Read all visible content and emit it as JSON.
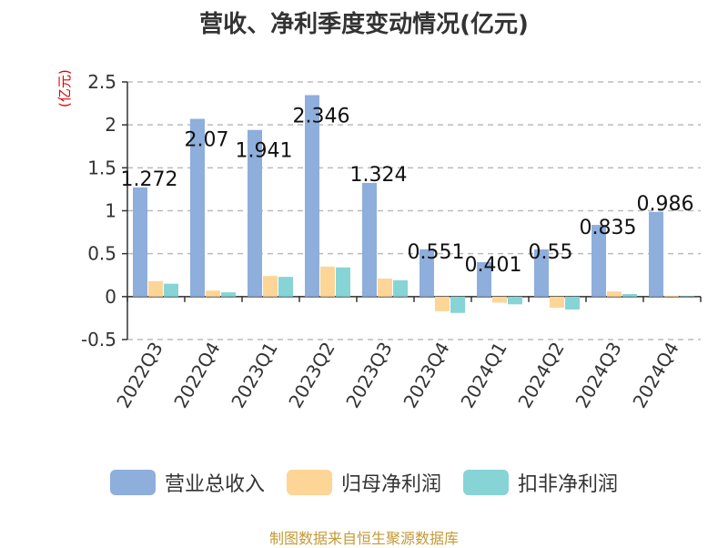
{
  "title": "营收、净利季度变动情况(亿元)",
  "unit_label": "(亿元)",
  "source": "制图数据来自恒生聚源数据库",
  "chart_data": {
    "type": "bar",
    "categories": [
      "2022Q3",
      "2022Q4",
      "2023Q1",
      "2023Q2",
      "2023Q3",
      "2023Q4",
      "2024Q1",
      "2024Q2",
      "2024Q3",
      "2024Q4"
    ],
    "series": [
      {
        "name": "营业总收入",
        "color": "#8eaedc",
        "values": [
          1.272,
          2.07,
          1.941,
          2.346,
          1.324,
          0.551,
          0.401,
          0.55,
          0.835,
          0.986
        ]
      },
      {
        "name": "归母净利润",
        "color": "#fdd596",
        "values": [
          0.18,
          0.07,
          0.24,
          0.35,
          0.21,
          -0.17,
          -0.07,
          -0.13,
          0.06,
          0.01
        ]
      },
      {
        "name": "扣非净利润",
        "color": "#86d4d6",
        "values": [
          0.15,
          0.05,
          0.23,
          0.34,
          0.19,
          -0.19,
          -0.09,
          -0.15,
          0.03,
          0.005
        ]
      }
    ],
    "data_labels": [
      "1.272",
      "2.07",
      "1.941",
      "2.346",
      "1.324",
      "0.551",
      "0.401",
      "0.55",
      "0.835",
      "0.986"
    ],
    "ylim": [
      -0.5,
      2.5
    ],
    "yticks": [
      -0.5,
      0,
      0.5,
      1,
      1.5,
      2,
      2.5
    ],
    "ytick_labels": [
      "-0.5",
      "0",
      "0.5",
      "1",
      "1.5",
      "2",
      "2.5"
    ],
    "grid": true,
    "legend_position": "bottom"
  }
}
